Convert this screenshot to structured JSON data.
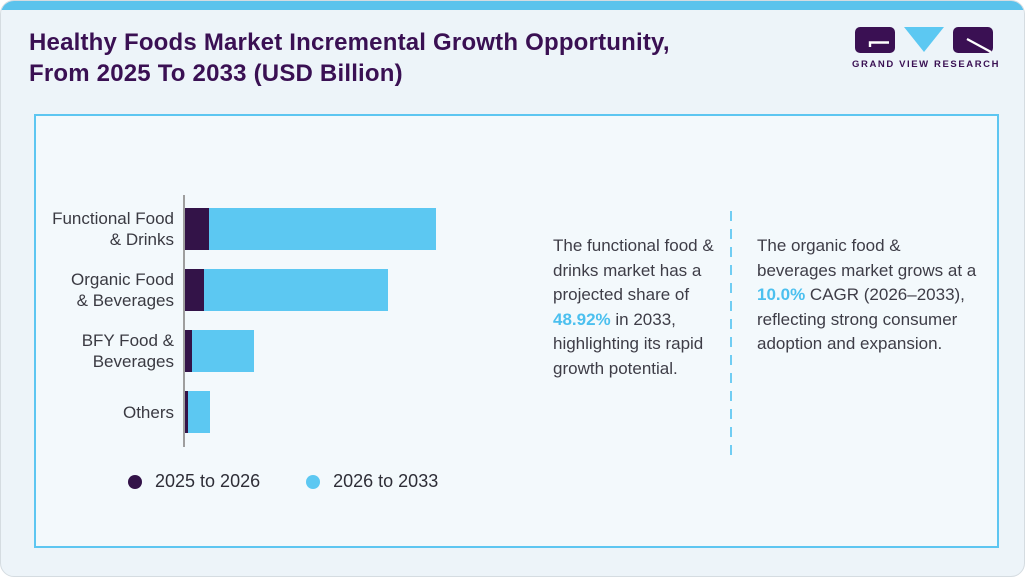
{
  "header": {
    "title": "Healthy Foods Market Incremental Growth Opportunity,\nFrom 2025 To 2033 (USD Billion)",
    "logo": {
      "brand": "GRAND VIEW RESEARCH"
    }
  },
  "colors": {
    "accent_blue": "#5cc8f2",
    "dark_purple": "#331348",
    "title_purple": "#3a1053",
    "panel_border": "#5dc6f1",
    "axis_gray": "#9e9e9e",
    "body_text": "#3e3d47",
    "highlight_blue": "#4cc0ef",
    "divider_blue": "#70cdf3"
  },
  "chart_data": {
    "type": "bar",
    "orientation": "horizontal",
    "stacked": true,
    "title": "Healthy Foods Market Incremental Growth Opportunity, From 2025 To 2033 (USD Billion)",
    "categories": [
      "Functional Food & Drinks",
      "Organic Food & Beverages",
      "BFY Food & Beverages",
      "Others"
    ],
    "categories_display": [
      "Functional Food\n& Drinks",
      "Organic Food\n& Beverages",
      "BFY Food &\nBeverages",
      "Others"
    ],
    "series": [
      {
        "name": "2025 to 2026",
        "color": "#331348",
        "values": [
          24,
          19,
          7,
          3
        ]
      },
      {
        "name": "2026 to 2033",
        "color": "#5cc8f2",
        "values": [
          227,
          184,
          62,
          22
        ]
      }
    ],
    "pixels_per_unit": 1,
    "units": "relative length (no numeric value axis shown; values estimated from bar pixel lengths)",
    "value_axis_visible": false,
    "grid": false,
    "legend_position": "bottom-left"
  },
  "insights": [
    {
      "pre": "The functional food & drinks market has a projected share of ",
      "highlight": "48.92%",
      "post": " in 2033, highlighting its rapid growth potential."
    },
    {
      "pre": "The organic food & beverages market grows at a ",
      "highlight": "10.0%",
      "post": " CAGR (2026–2033), reflecting strong consumer adoption and expansion."
    }
  ]
}
